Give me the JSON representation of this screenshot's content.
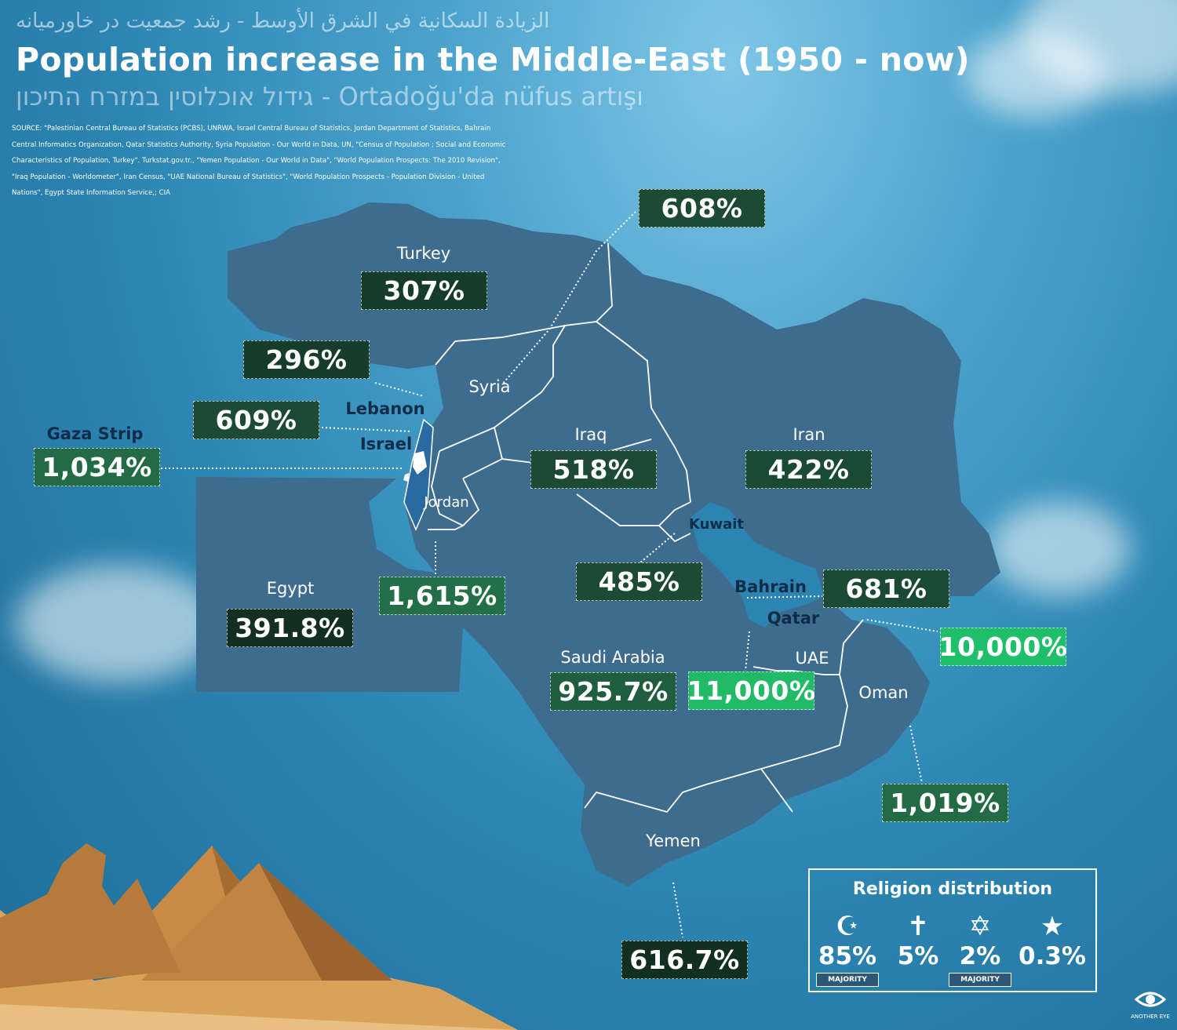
{
  "header": {
    "subtitle_arabic_persian": "الزيادة السكانية في الشرق الأوسط - رشد جمعیت در خاورمیانه",
    "title": "Population increase in the Middle-East (1950 - now)",
    "subtitle_hebrew_turkish": "גידול אוכלוסין במזרח התיכון - Ortadoğu'da nüfus artışı",
    "source": "SOURCE: \"Palestinian Central Bureau of Statistics (PCBS), UNRWA, Israel Central Bureau of Statistics, Jordan Department of Statistics, Bahrain Central Informatics Organization, Qatar Statistics Authority, Syria Population - Our World in Data, UN, \"Census of Population ; Social and Economic Characteristics of Population, Turkey\". Turkstat.gov.tr., \"Yemen Population - Our World in Data\", \"World Population Prospects: The 2010 Revision\", \"Iraq Population - Worldometer\", Iran Census, \"UAE National Bureau of Statistics\", \"World Population Prospects - Population Division - United Nations\", Egypt State Information Service,; CIA"
  },
  "colors": {
    "land": "#3e6c8e",
    "highlight_region": "#2a6aa3",
    "box_dark": "#1c4a33",
    "box_mid": "#226b45",
    "box_bright": "#1fbf6a",
    "border_line": "#ffffff"
  },
  "countries": [
    {
      "name": "Turkey",
      "increase": "307%"
    },
    {
      "name": "Syria",
      "increase": "608%"
    },
    {
      "name": "Lebanon",
      "increase": "296%"
    },
    {
      "name": "Israel",
      "increase": "609%"
    },
    {
      "name": "Gaza Strip",
      "increase": "1,034%"
    },
    {
      "name": "Jordan",
      "increase": "1,615%"
    },
    {
      "name": "Egypt",
      "increase": "391.8%"
    },
    {
      "name": "Iraq",
      "increase": "518%"
    },
    {
      "name": "Iran",
      "increase": "422%"
    },
    {
      "name": "Kuwait",
      "increase": "485%"
    },
    {
      "name": "Bahrain",
      "increase": "681%"
    },
    {
      "name": "Qatar",
      "increase": "11,000%"
    },
    {
      "name": "UAE",
      "increase": "10,000%"
    },
    {
      "name": "Saudi Arabia",
      "increase": "925.7%"
    },
    {
      "name": "Oman",
      "increase": "1,019%"
    },
    {
      "name": "Yemen",
      "increase": "616.7%"
    }
  ],
  "religion": {
    "title": "Religion distribution",
    "items": [
      {
        "icon": "islam-crescent-icon",
        "value": "85%",
        "badge": "MAJORITY"
      },
      {
        "icon": "christian-cross-icon",
        "value": "5%",
        "badge": ""
      },
      {
        "icon": "star-of-david-icon",
        "value": "2%",
        "badge": "MAJORITY"
      },
      {
        "icon": "star-icon",
        "value": "0.3%",
        "badge": ""
      }
    ]
  },
  "brand": {
    "name": "ANOTHER EYE",
    "icon": "eye-icon"
  }
}
